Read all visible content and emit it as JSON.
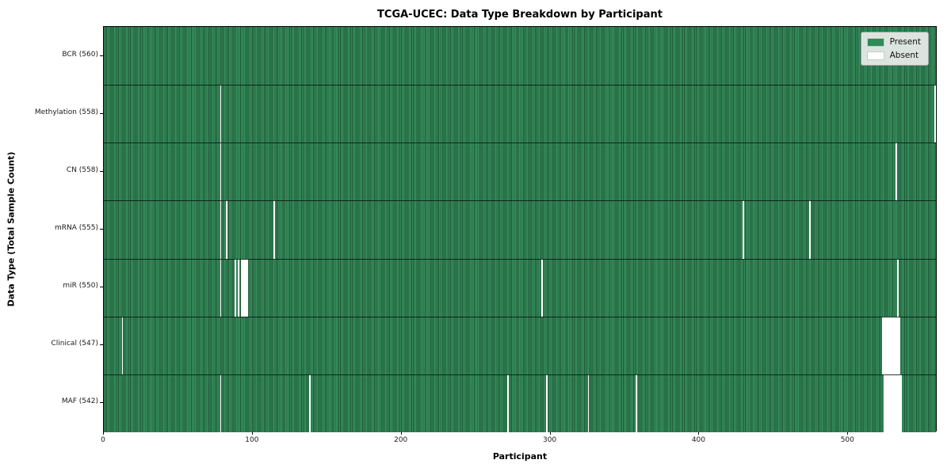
{
  "title": "TCGA-UCEC: Data Type Breakdown by Participant",
  "chart_data": {
    "type": "heatmap",
    "title": "TCGA-UCEC: Data Type Breakdown by Participant",
    "xlabel": "Participant",
    "ylabel": "Data Type (Total Sample Count)",
    "n_participants": 560,
    "x_domain": [
      0,
      560
    ],
    "x_ticks": [
      0,
      100,
      200,
      300,
      400,
      500
    ],
    "grid": false,
    "legend_position": "upper right",
    "colors": {
      "present": "#2e8b57",
      "present_stripe_dark": "#1d5434",
      "absent": "#ffffff",
      "row_separator": "#0a190f",
      "legend_bg": "#eaeeea"
    },
    "legend": [
      {
        "label": "Present",
        "color": "#2e8b57"
      },
      {
        "label": "Absent",
        "color": "#ffffff"
      }
    ],
    "rows": [
      {
        "name": "BCR",
        "label": "BCR (560)",
        "present_count": 560,
        "absent_participants": []
      },
      {
        "name": "Methylation",
        "label": "Methylation (558)",
        "present_count": 558,
        "absent_participants": [
          78,
          558
        ]
      },
      {
        "name": "CN",
        "label": "CN (558)",
        "present_count": 558,
        "absent_participants": [
          78,
          532
        ]
      },
      {
        "name": "mRNA",
        "label": "mRNA (555)",
        "present_count": 555,
        "absent_participants": [
          78,
          82,
          114,
          429,
          474
        ]
      },
      {
        "name": "miR",
        "label": "miR (550)",
        "present_count": 550,
        "absent_participants": [
          78,
          88,
          90,
          92,
          93,
          94,
          95,
          96,
          294,
          533
        ]
      },
      {
        "name": "Clinical",
        "label": "Clinical (547)",
        "present_count": 547,
        "absent_participants": [
          12,
          523,
          524,
          525,
          526,
          527,
          528,
          529,
          530,
          531,
          532,
          533,
          534
        ]
      },
      {
        "name": "MAF",
        "label": "MAF (542)",
        "present_count": 542,
        "absent_participants": [
          78,
          138,
          271,
          297,
          325,
          357,
          524,
          525,
          526,
          527,
          528,
          529,
          530,
          531,
          532,
          533,
          534,
          535
        ]
      }
    ]
  }
}
